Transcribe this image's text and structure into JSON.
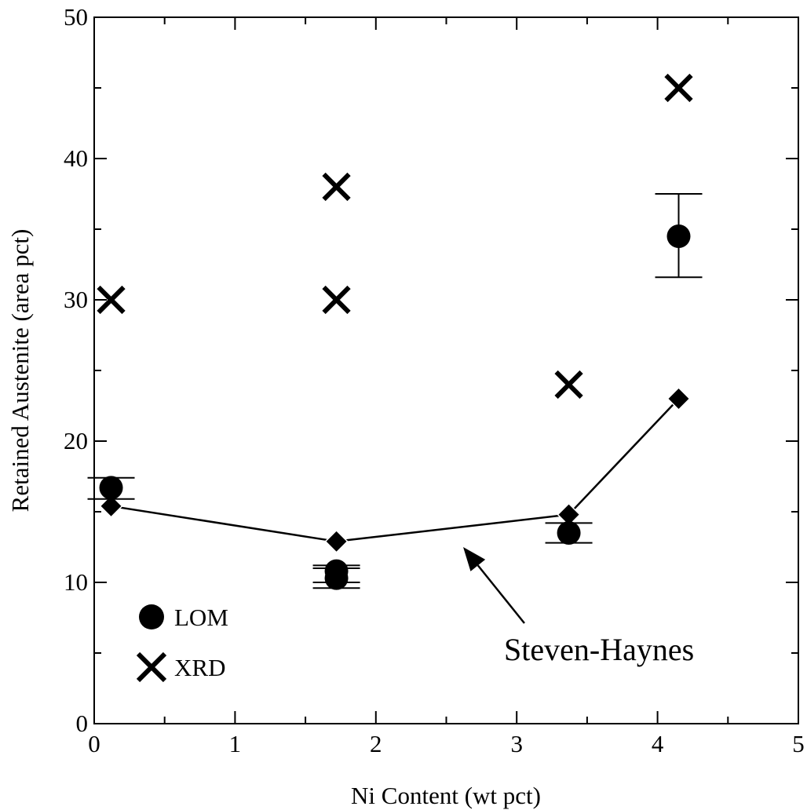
{
  "chart_data": {
    "type": "scatter",
    "xlabel": "Ni Content (wt pct)",
    "ylabel": "Retained Austenite (area pct)",
    "xlim": [
      0,
      5
    ],
    "ylim": [
      0,
      50
    ],
    "x_ticks": [
      0,
      1,
      2,
      3,
      4,
      5
    ],
    "y_ticks": [
      0,
      10,
      20,
      30,
      40,
      50
    ],
    "x_tick_labels": [
      "0",
      "1",
      "2",
      "3",
      "4",
      "5"
    ],
    "y_tick_labels": [
      "0",
      "10",
      "20",
      "30",
      "40",
      "50"
    ],
    "grid": false,
    "legend_position": "bottom-left",
    "series": [
      {
        "name": "LOM",
        "marker": "circle",
        "x": [
          0.12,
          1.72,
          1.72,
          3.37,
          4.15
        ],
        "y": [
          16.7,
          10.8,
          10.3,
          13.5,
          34.5
        ],
        "err_low": [
          15.9,
          10.0,
          9.6,
          12.8,
          31.6
        ],
        "err_high": [
          17.4,
          11.2,
          11.0,
          14.2,
          37.5
        ]
      },
      {
        "name": "XRD",
        "marker": "x",
        "x": [
          0.12,
          1.72,
          1.72,
          3.37,
          4.15
        ],
        "y": [
          30,
          38,
          30,
          24,
          45
        ]
      },
      {
        "marker": "diamond",
        "line": true,
        "x": [
          0.12,
          1.72,
          3.37,
          4.15
        ],
        "y": [
          15.4,
          12.9,
          14.8,
          23
        ]
      }
    ],
    "annotations": [
      {
        "text": "Steven-Haynes",
        "arrow_to": {
          "x": 2.62,
          "y": 12.5
        }
      }
    ]
  }
}
